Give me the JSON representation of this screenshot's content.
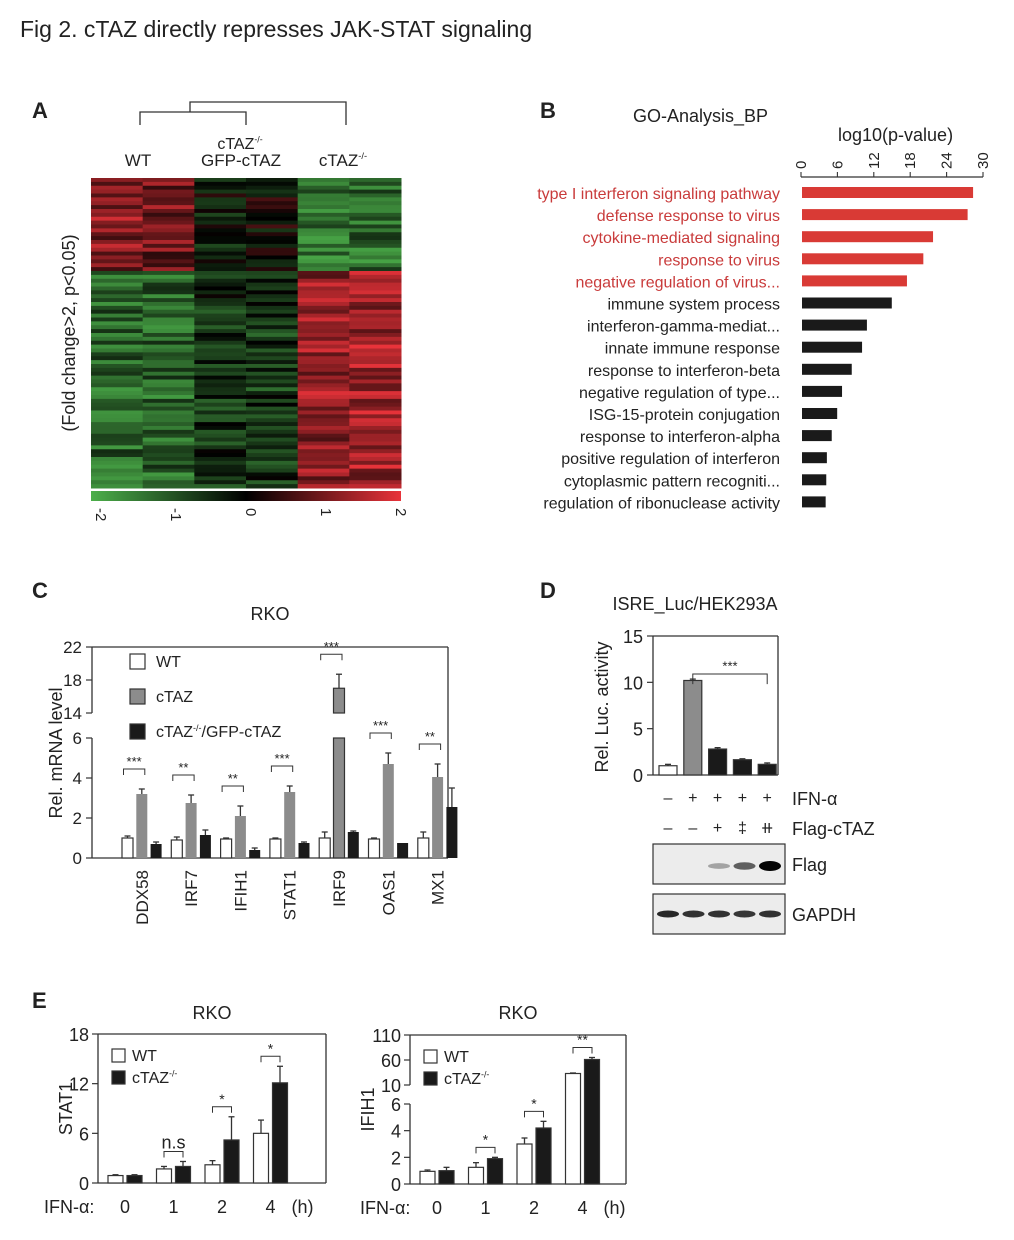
{
  "figure_title": "Fig 2. cTAZ directly represses JAK-STAT signaling",
  "panels": {
    "A": {
      "letter": "A"
    },
    "B": {
      "letter": "B"
    },
    "C": {
      "letter": "C"
    },
    "D": {
      "letter": "D"
    },
    "E": {
      "letter": "E"
    }
  },
  "colors": {
    "red_highlight": "#d93a35",
    "black_bar": "#1a1a1a",
    "gray_bar": "#8c8c8c",
    "heat_low": "#4caf4a",
    "heat_mid": "#000000",
    "heat_high": "#e8333a"
  },
  "chart_data": [
    {
      "id": "A",
      "type": "heatmap",
      "column_groups": [
        {
          "label": "WT",
          "label_line2": ""
        },
        {
          "label": "cTAZ-/-",
          "label_line2": "GFP-cTAZ"
        },
        {
          "label": "cTAZ-/-",
          "label_line2": ""
        }
      ],
      "ylabel": "(Fold change>2, p<0.05)",
      "colorbar_ticks": [
        "-2",
        "-1",
        "0",
        "1",
        "2"
      ],
      "colorbar_range": [
        -2,
        2
      ],
      "dendrogram": "WT and cTAZ-/-;GFP-cTAZ cluster together; cTAZ-/- separate",
      "pattern_note": "Upper block: WT red, rescue mixed/dark, cTAZ-/- green. Lower block: WT green, rescue dark green, cTAZ-/- red.",
      "blocks": [
        {
          "rows_fraction": 0.3,
          "column_means": [
            1.2,
            1.0,
            -0.2,
            0.0,
            -1.3,
            -1.2
          ]
        },
        {
          "rows_fraction": 0.7,
          "column_means": [
            -1.1,
            -1.1,
            -0.5,
            -0.6,
            1.3,
            1.4
          ]
        }
      ]
    },
    {
      "id": "B",
      "type": "bar",
      "orientation": "horizontal",
      "title": "GO-Analysis_BP",
      "xlabel": "log10(p-value)",
      "xlim": [
        0,
        30
      ],
      "xticks": [
        "0",
        "6",
        "12",
        "18",
        "24",
        "30"
      ],
      "categories": [
        "type I interferon signaling pathway",
        "defense response to virus ",
        "cytokine-mediated signaling",
        "response to virus",
        "negative regulation of virus...",
        "immune system process",
        "interferon-gamma-mediat...",
        "innate immune response",
        "response to interferon-beta",
        "negative regulation of type...",
        "ISG-15-protein conjugation",
        "response to interferon-alpha",
        "positive regulation of interferon",
        "cytoplasmic pattern recogniti...",
        "regulation of ribonuclease activity"
      ],
      "values": [
        28.2,
        27.3,
        21.6,
        20.0,
        17.3,
        14.8,
        10.7,
        9.9,
        8.2,
        6.6,
        5.8,
        4.9,
        4.1,
        4.0,
        3.9
      ],
      "highlighted": [
        true,
        true,
        true,
        true,
        true,
        false,
        false,
        false,
        false,
        false,
        false,
        false,
        false,
        false,
        false
      ]
    },
    {
      "id": "C",
      "type": "bar",
      "title": "RKO",
      "ylabel": "Rel. mRNA level",
      "broken_axis": {
        "lower": [
          0,
          6
        ],
        "upper": [
          14,
          22
        ]
      },
      "yticks_lower": [
        "0",
        "2",
        "4",
        "6"
      ],
      "yticks_upper": [
        "14",
        "18",
        "22"
      ],
      "categories": [
        "DDX58",
        "IRF7",
        "IFIH1",
        "STAT1",
        "IRF9",
        "OAS1",
        "MX1"
      ],
      "series": [
        {
          "name": "WT",
          "values": [
            1.0,
            0.9,
            0.95,
            0.95,
            1.0,
            0.95,
            1.0
          ],
          "errors": [
            0.1,
            0.15,
            0.05,
            0.05,
            0.3,
            0.05,
            0.3
          ]
        },
        {
          "name": "cTAZ",
          "values": [
            3.2,
            2.75,
            2.1,
            3.3,
            17.0,
            4.7,
            4.05
          ],
          "errors": [
            0.25,
            0.4,
            0.5,
            0.3,
            1.7,
            0.55,
            0.65
          ]
        },
        {
          "name": "cTAZ-/-/GFP-cTAZ",
          "values": [
            0.7,
            1.15,
            0.4,
            0.75,
            1.3,
            0.75,
            2.55
          ],
          "errors": [
            0.1,
            0.25,
            0.1,
            0.05,
            0.05,
            0.0,
            0.95
          ]
        }
      ],
      "significance": [
        "***",
        "**",
        "**",
        "***",
        "***",
        "***",
        "**"
      ],
      "legend": [
        "WT",
        "cTAZ",
        "cTAZ-/-/GFP-cTAZ"
      ],
      "legend_position": "top-left"
    },
    {
      "id": "D",
      "type": "bar",
      "title": "ISRE_Luc/HEK293A",
      "ylabel": "Rel. Luc. activity",
      "ylim": [
        0,
        15
      ],
      "yticks": [
        "0",
        "5",
        "10",
        "15"
      ],
      "values": [
        1.0,
        10.2,
        2.8,
        1.65,
        1.15
      ],
      "errors": [
        0.15,
        0.15,
        0.15,
        0.1,
        0.15
      ],
      "bar_fill": [
        "white",
        "gray",
        "black",
        "black",
        "black"
      ],
      "significance": "***",
      "conditions": [
        {
          "label": "IFN-α",
          "values": [
            "–",
            "+",
            "+",
            "+",
            "+"
          ]
        },
        {
          "label": "Flag-cTAZ",
          "values": [
            "–",
            "–",
            "+",
            "‡",
            "⧺"
          ]
        }
      ],
      "blots": [
        {
          "label": "Flag",
          "band_intensity": [
            0,
            0,
            0.3,
            0.6,
            1.0
          ]
        },
        {
          "label": "GAPDH",
          "band_intensity": [
            0.85,
            0.8,
            0.8,
            0.78,
            0.8
          ]
        }
      ]
    },
    {
      "id": "E1",
      "type": "bar",
      "title": "RKO",
      "ylabel": "STAT1",
      "ylim": [
        0,
        18
      ],
      "yticks": [
        "0",
        "6",
        "12",
        "18"
      ],
      "categories": [
        "0",
        "1",
        "2",
        "4"
      ],
      "xprefix": "IFN-α:",
      "xsuffix": "(h)",
      "series": [
        {
          "name": "WT",
          "values": [
            0.9,
            1.7,
            2.2,
            6.0
          ],
          "errors": [
            0.1,
            0.3,
            0.5,
            1.6
          ]
        },
        {
          "name": "cTAZ-/-",
          "values": [
            0.9,
            2.0,
            5.2,
            12.1
          ],
          "errors": [
            0.1,
            0.6,
            2.8,
            2.0
          ]
        }
      ],
      "significance": [
        "",
        "n.s",
        "*",
        "*"
      ],
      "legend": [
        "WT",
        "cTAZ-/-"
      ],
      "legend_position": "top-left"
    },
    {
      "id": "E2",
      "type": "bar",
      "title": "RKO",
      "ylabel": "IFIH1",
      "broken_axis": {
        "lower": [
          0,
          6
        ],
        "upper": [
          10,
          110
        ]
      },
      "yticks_lower": [
        "0",
        "2",
        "4",
        "6"
      ],
      "yticks_upper": [
        "10",
        "60",
        "110"
      ],
      "categories": [
        "0",
        "1",
        "2",
        "4"
      ],
      "xprefix": "IFN-α:",
      "xsuffix": "(h)",
      "series": [
        {
          "name": "WT",
          "values": [
            0.95,
            1.25,
            3.0,
            33
          ],
          "errors": [
            0.1,
            0.35,
            0.45,
            1
          ]
        },
        {
          "name": "cTAZ-/-",
          "values": [
            1.0,
            1.9,
            4.2,
            61
          ],
          "errors": [
            0.25,
            0.1,
            0.5,
            4
          ]
        }
      ],
      "significance": [
        "",
        "*",
        "*",
        "**"
      ],
      "legend": [
        "WT",
        "cTAZ-/-"
      ],
      "legend_position": "top-left"
    }
  ]
}
